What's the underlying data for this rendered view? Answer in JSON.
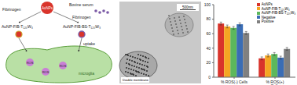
{
  "diagram": {
    "top_particle": "AuNPs",
    "protein_left": "Fibrinogen",
    "serum": "Bovine serum",
    "protein_right": "Fibrinogen",
    "product_left": "AuNP-FIB-T₁₂₀W₃",
    "product_right": "AuNP-FIB-BS-T₁₂₀W₃",
    "process": "uptake",
    "ros_labels": [
      "ROS",
      "ROS",
      "ROS"
    ],
    "cell": "microglia"
  },
  "image": {
    "scale_bar": "500nm",
    "annotation": "Double membrane"
  },
  "chart_data": {
    "type": "bar",
    "categories": [
      "% ROS(-) Cells",
      "% ROS(+) Cells"
    ],
    "series": [
      {
        "name": "AuNPs",
        "color": "#d9342b",
        "values": [
          74,
          26
        ],
        "errors": [
          2,
          2
        ]
      },
      {
        "name": "AuNP-FIB-T₁₂₀W₃",
        "color": "#f5a623",
        "values": [
          70,
          30
        ],
        "errors": [
          2,
          2
        ]
      },
      {
        "name": "AuNP-FIB-BS-T₁₂₀W₃",
        "color": "#5cb85c",
        "values": [
          68,
          32
        ],
        "errors": [
          2,
          2
        ]
      },
      {
        "name": "Negative",
        "color": "#3a6db5",
        "values": [
          73,
          27
        ],
        "errors": [
          2,
          2
        ]
      },
      {
        "name": "Positive",
        "color": "#808080",
        "values": [
          61,
          39
        ],
        "errors": [
          2,
          2
        ]
      }
    ],
    "ylim": [
      0,
      100
    ],
    "yticks": [
      0,
      20,
      40,
      60,
      80,
      100
    ],
    "legend": "upper right",
    "grid": false
  }
}
